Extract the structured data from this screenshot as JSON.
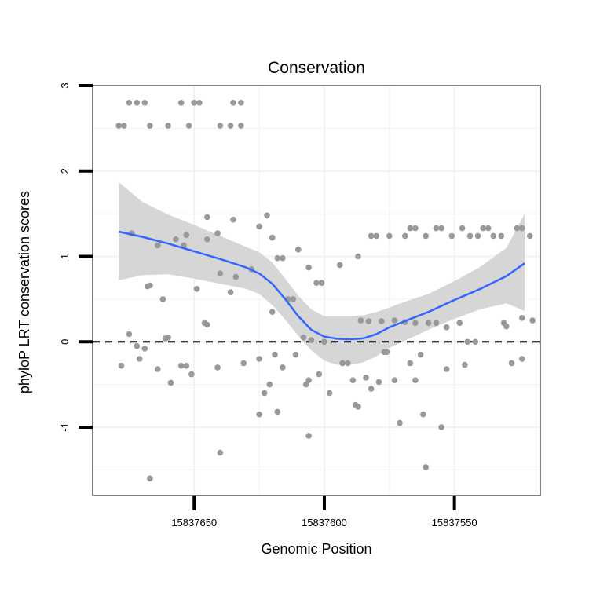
{
  "chart_data": {
    "type": "scatter",
    "title": "Conservation",
    "xlabel": "Genomic Position",
    "ylabel": "phyloP LRT conservation scores",
    "x_reversed": true,
    "xlim": [
      15837689,
      15837517
    ],
    "ylim": [
      -1.8,
      3.0
    ],
    "x_ticks": [
      15837650,
      15837600,
      15837550
    ],
    "x_tick_labels": [
      "15837650",
      "15837600",
      "15837550"
    ],
    "y_ticks": [
      -1,
      0,
      1,
      2,
      3
    ],
    "y_tick_labels": [
      "-1",
      "0",
      "1",
      "2",
      "3"
    ],
    "reference_line": {
      "y": 0,
      "style": "dashed"
    },
    "colors": {
      "points": "#999999",
      "smooth": "#3366ff",
      "band": "#d4d4d4",
      "panel_border": "#7f7f7f",
      "grid": "#f2f2f2"
    },
    "points": [
      {
        "x": 15837679,
        "y": 2.53
      },
      {
        "x": 15837677,
        "y": 2.53
      },
      {
        "x": 15837675,
        "y": 2.8
      },
      {
        "x": 15837672,
        "y": 2.8
      },
      {
        "x": 15837669,
        "y": 2.8
      },
      {
        "x": 15837667,
        "y": 2.53
      },
      {
        "x": 15837660,
        "y": 2.53
      },
      {
        "x": 15837655,
        "y": 2.8
      },
      {
        "x": 15837652,
        "y": 2.53
      },
      {
        "x": 15837650,
        "y": 2.8
      },
      {
        "x": 15837648,
        "y": 2.8
      },
      {
        "x": 15837640,
        "y": 2.53
      },
      {
        "x": 15837636,
        "y": 2.53
      },
      {
        "x": 15837635,
        "y": 2.8
      },
      {
        "x": 15837632,
        "y": 2.8
      },
      {
        "x": 15837632,
        "y": 2.53
      },
      {
        "x": 15837674,
        "y": 1.27
      },
      {
        "x": 15837664,
        "y": 1.13
      },
      {
        "x": 15837657,
        "y": 1.2
      },
      {
        "x": 15837654,
        "y": 1.13
      },
      {
        "x": 15837653,
        "y": 1.25
      },
      {
        "x": 15837645,
        "y": 1.2
      },
      {
        "x": 15837645,
        "y": 1.46
      },
      {
        "x": 15837641,
        "y": 1.27
      },
      {
        "x": 15837635,
        "y": 1.43
      },
      {
        "x": 15837625,
        "y": 1.35
      },
      {
        "x": 15837622,
        "y": 1.48
      },
      {
        "x": 15837620,
        "y": 1.22
      },
      {
        "x": 15837618,
        "y": 0.98
      },
      {
        "x": 15837616,
        "y": 0.98
      },
      {
        "x": 15837610,
        "y": 1.08
      },
      {
        "x": 15837606,
        "y": 0.87
      },
      {
        "x": 15837603,
        "y": 0.69
      },
      {
        "x": 15837601,
        "y": 0.69
      },
      {
        "x": 15837594,
        "y": 0.9
      },
      {
        "x": 15837587,
        "y": 1.0
      },
      {
        "x": 15837582,
        "y": 1.24
      },
      {
        "x": 15837580,
        "y": 1.24
      },
      {
        "x": 15837575,
        "y": 1.24
      },
      {
        "x": 15837569,
        "y": 1.24
      },
      {
        "x": 15837567,
        "y": 1.33
      },
      {
        "x": 15837565,
        "y": 1.33
      },
      {
        "x": 15837561,
        "y": 1.24
      },
      {
        "x": 15837557,
        "y": 1.33
      },
      {
        "x": 15837555,
        "y": 1.33
      },
      {
        "x": 15837551,
        "y": 1.24
      },
      {
        "x": 15837547,
        "y": 1.33
      },
      {
        "x": 15837544,
        "y": 1.24
      },
      {
        "x": 15837541,
        "y": 1.24
      },
      {
        "x": 15837539,
        "y": 1.33
      },
      {
        "x": 15837537,
        "y": 1.33
      },
      {
        "x": 15837535,
        "y": 1.24
      },
      {
        "x": 15837532,
        "y": 1.24
      },
      {
        "x": 15837526,
        "y": 1.33
      },
      {
        "x": 15837524,
        "y": 1.33
      },
      {
        "x": 15837521,
        "y": 1.24
      },
      {
        "x": 15837668,
        "y": 0.65
      },
      {
        "x": 15837667,
        "y": 0.66
      },
      {
        "x": 15837662,
        "y": 0.5
      },
      {
        "x": 15837649,
        "y": 0.62
      },
      {
        "x": 15837646,
        "y": 0.22
      },
      {
        "x": 15837645,
        "y": 0.2
      },
      {
        "x": 15837640,
        "y": 0.8
      },
      {
        "x": 15837636,
        "y": 0.58
      },
      {
        "x": 15837634,
        "y": 0.76
      },
      {
        "x": 15837628,
        "y": 0.85
      },
      {
        "x": 15837620,
        "y": 0.35
      },
      {
        "x": 15837614,
        "y": 0.5
      },
      {
        "x": 15837612,
        "y": 0.5
      },
      {
        "x": 15837608,
        "y": 0.05
      },
      {
        "x": 15837605,
        "y": 0.02
      },
      {
        "x": 15837600,
        "y": 0.0
      },
      {
        "x": 15837586,
        "y": 0.25
      },
      {
        "x": 15837583,
        "y": 0.24
      },
      {
        "x": 15837578,
        "y": 0.24
      },
      {
        "x": 15837573,
        "y": 0.25
      },
      {
        "x": 15837569,
        "y": 0.23
      },
      {
        "x": 15837565,
        "y": 0.22
      },
      {
        "x": 15837560,
        "y": 0.22
      },
      {
        "x": 15837557,
        "y": 0.22
      },
      {
        "x": 15837553,
        "y": 0.17
      },
      {
        "x": 15837548,
        "y": 0.22
      },
      {
        "x": 15837531,
        "y": 0.22
      },
      {
        "x": 15837530,
        "y": 0.18
      },
      {
        "x": 15837524,
        "y": 0.28
      },
      {
        "x": 15837520,
        "y": 0.25
      },
      {
        "x": 15837678,
        "y": -0.28
      },
      {
        "x": 15837675,
        "y": 0.09
      },
      {
        "x": 15837672,
        "y": -0.05
      },
      {
        "x": 15837671,
        "y": -0.2
      },
      {
        "x": 15837669,
        "y": -0.08
      },
      {
        "x": 15837664,
        "y": -0.32
      },
      {
        "x": 15837661,
        "y": 0.04
      },
      {
        "x": 15837660,
        "y": 0.05
      },
      {
        "x": 15837659,
        "y": -0.48
      },
      {
        "x": 15837655,
        "y": -0.28
      },
      {
        "x": 15837653,
        "y": -0.28
      },
      {
        "x": 15837651,
        "y": -0.38
      },
      {
        "x": 15837641,
        "y": -0.3
      },
      {
        "x": 15837631,
        "y": -0.25
      },
      {
        "x": 15837625,
        "y": -0.85
      },
      {
        "x": 15837623,
        "y": -0.6
      },
      {
        "x": 15837621,
        "y": -0.5
      },
      {
        "x": 15837618,
        "y": -0.82
      },
      {
        "x": 15837616,
        "y": -0.3
      },
      {
        "x": 15837611,
        "y": -0.15
      },
      {
        "x": 15837607,
        "y": -0.5
      },
      {
        "x": 15837606,
        "y": -0.45
      },
      {
        "x": 15837602,
        "y": -0.38
      },
      {
        "x": 15837598,
        "y": -0.6
      },
      {
        "x": 15837593,
        "y": -0.25
      },
      {
        "x": 15837591,
        "y": -0.25
      },
      {
        "x": 15837589,
        "y": -0.45
      },
      {
        "x": 15837588,
        "y": -0.74
      },
      {
        "x": 15837587,
        "y": -0.76
      },
      {
        "x": 15837584,
        "y": -0.42
      },
      {
        "x": 15837582,
        "y": -0.55
      },
      {
        "x": 15837579,
        "y": -0.47
      },
      {
        "x": 15837577,
        "y": -0.12
      },
      {
        "x": 15837576,
        "y": -0.12
      },
      {
        "x": 15837573,
        "y": -0.45
      },
      {
        "x": 15837571,
        "y": -0.95
      },
      {
        "x": 15837567,
        "y": -0.25
      },
      {
        "x": 15837565,
        "y": -0.45
      },
      {
        "x": 15837563,
        "y": -0.15
      },
      {
        "x": 15837562,
        "y": -0.85
      },
      {
        "x": 15837561,
        "y": -1.47
      },
      {
        "x": 15837555,
        "y": -1.0
      },
      {
        "x": 15837553,
        "y": -0.32
      },
      {
        "x": 15837546,
        "y": -0.27
      },
      {
        "x": 15837545,
        "y": 0.0
      },
      {
        "x": 15837542,
        "y": 0.0
      },
      {
        "x": 15837528,
        "y": -0.25
      },
      {
        "x": 15837524,
        "y": -0.2
      },
      {
        "x": 15837625,
        "y": -0.2
      },
      {
        "x": 15837619,
        "y": -0.15
      },
      {
        "x": 15837606,
        "y": -1.1
      },
      {
        "x": 15837640,
        "y": -1.3
      },
      {
        "x": 15837667,
        "y": -1.6
      }
    ],
    "smooth": {
      "x": [
        15837679,
        15837670,
        15837660,
        15837650,
        15837640,
        15837630,
        15837625,
        15837620,
        15837615,
        15837610,
        15837605,
        15837600,
        15837595,
        15837590,
        15837585,
        15837580,
        15837575,
        15837570,
        15837560,
        15837550,
        15837540,
        15837530,
        15837523
      ],
      "y": [
        1.29,
        1.23,
        1.15,
        1.06,
        0.97,
        0.87,
        0.8,
        0.68,
        0.5,
        0.3,
        0.14,
        0.06,
        0.035,
        0.03,
        0.04,
        0.09,
        0.17,
        0.23,
        0.35,
        0.49,
        0.62,
        0.77,
        0.92
      ],
      "lower": [
        0.72,
        0.78,
        0.79,
        0.74,
        0.68,
        0.62,
        0.56,
        0.43,
        0.26,
        0.07,
        -0.1,
        -0.22,
        -0.27,
        -0.27,
        -0.24,
        -0.17,
        -0.07,
        0.0,
        0.14,
        0.27,
        0.38,
        0.45,
        0.36
      ],
      "upper": [
        1.87,
        1.64,
        1.49,
        1.37,
        1.24,
        1.11,
        1.05,
        0.93,
        0.74,
        0.54,
        0.38,
        0.3,
        0.3,
        0.3,
        0.31,
        0.35,
        0.4,
        0.46,
        0.56,
        0.71,
        0.88,
        1.1,
        1.5
      ]
    }
  }
}
